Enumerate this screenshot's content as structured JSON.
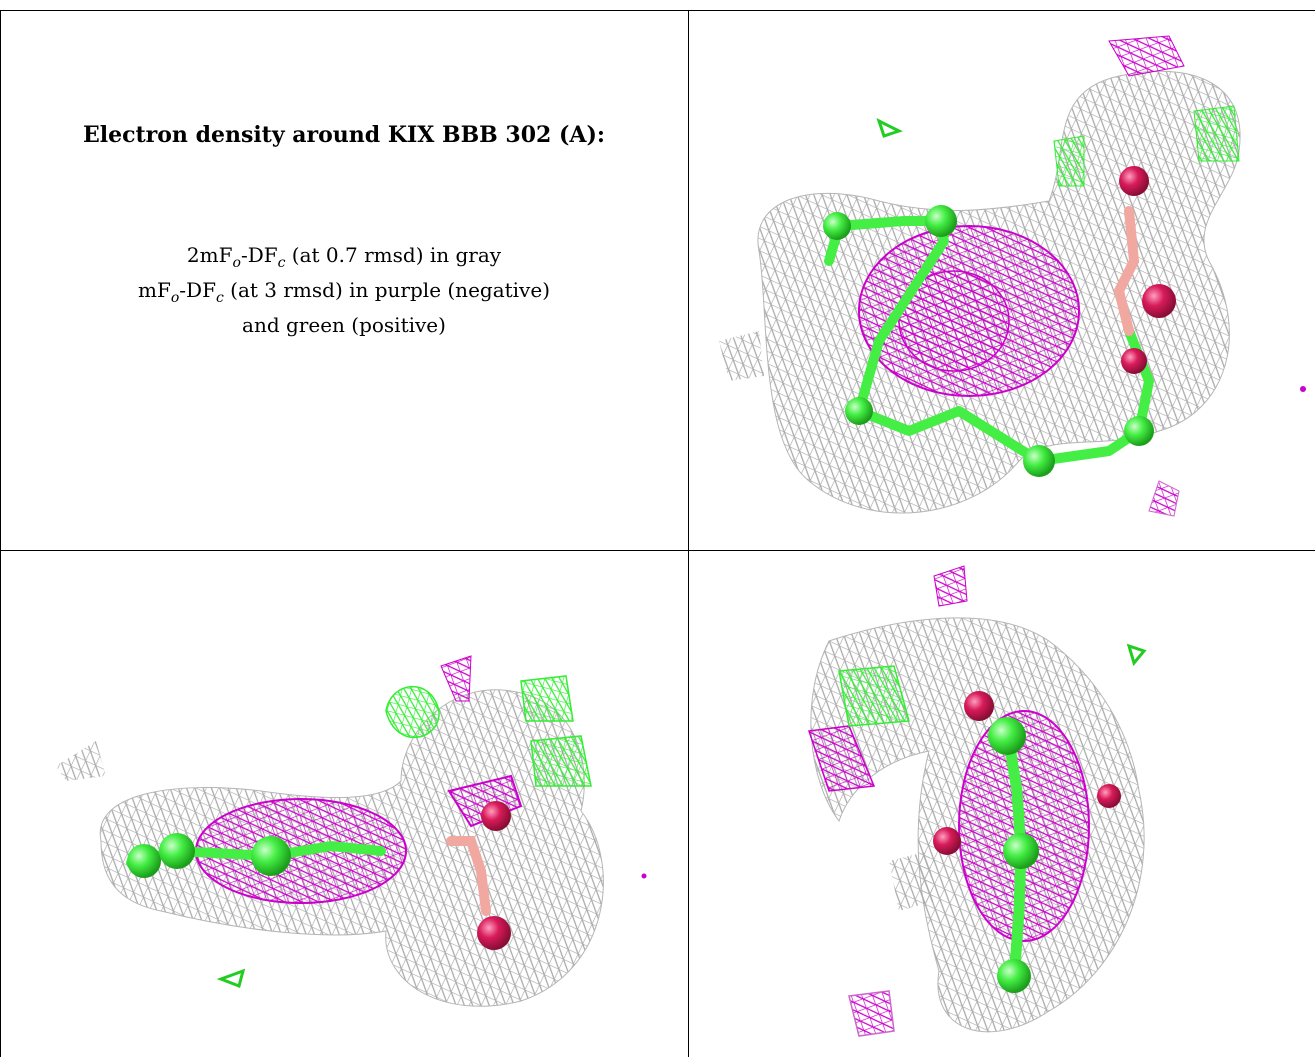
{
  "caption": {
    "title": "Electron density around KIX BBB 302 (A):",
    "line1": {
      "a": "2mF",
      "o": "o",
      "b": "-DF",
      "c": "c",
      "rest": " (at 0.7 rmsd) in gray"
    },
    "line2": {
      "a": "mF",
      "o": "o",
      "b": "-DF",
      "c": "c",
      "rest": " (at 3 rmsd) in purple (negative)"
    },
    "line3": "and green (positive)"
  },
  "colors": {
    "mesh_2fofc": "#a9a9a9",
    "mesh_negative": "#cc00cc",
    "mesh_positive": "#33ee33",
    "atom_carbon": "#44ee44",
    "atom_oxygen": "#d81b5a",
    "bond_salmon": "#f0a8a0"
  },
  "views": [
    {
      "name": "top-right"
    },
    {
      "name": "bottom-left"
    },
    {
      "name": "bottom-right"
    }
  ]
}
